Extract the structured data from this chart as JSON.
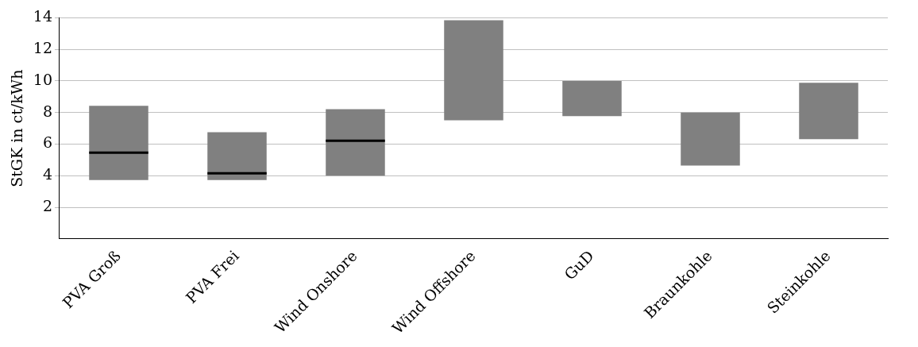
{
  "chart_data": {
    "type": "box",
    "ylabel": "StGK in ct/kWh",
    "categories": [
      "PVA Groß",
      "PVA Frei",
      "Wind Onshore",
      "Wind Offshore",
      "GuD",
      "Braunkohle",
      "Steinkohle"
    ],
    "color": "#808080",
    "boxes": [
      {
        "low": 3.73,
        "q1": 3.73,
        "median": 5.46,
        "q3": 8.43,
        "high": 8.43
      },
      {
        "low": 3.73,
        "q1": 3.73,
        "median": 4.16,
        "q3": 6.76,
        "high": 6.76
      },
      {
        "low": 4.0,
        "q1": 4.0,
        "median": 6.22,
        "q3": 8.22,
        "high": 8.22
      },
      {
        "low": 7.51,
        "q1": 7.51,
        "median": null,
        "q3": 13.84,
        "high": 13.84
      },
      {
        "low": 7.78,
        "q1": 7.78,
        "median": null,
        "q3": 10.0,
        "high": 10.0
      },
      {
        "low": 4.65,
        "q1": 4.65,
        "median": null,
        "q3": 8.0,
        "high": 8.0
      },
      {
        "low": 6.32,
        "q1": 6.32,
        "median": null,
        "q3": 9.89,
        "high": 9.89
      }
    ],
    "ylim": [
      0,
      14
    ],
    "yticks": [
      2,
      4,
      6,
      8,
      10,
      12,
      14
    ],
    "grid": "y"
  }
}
